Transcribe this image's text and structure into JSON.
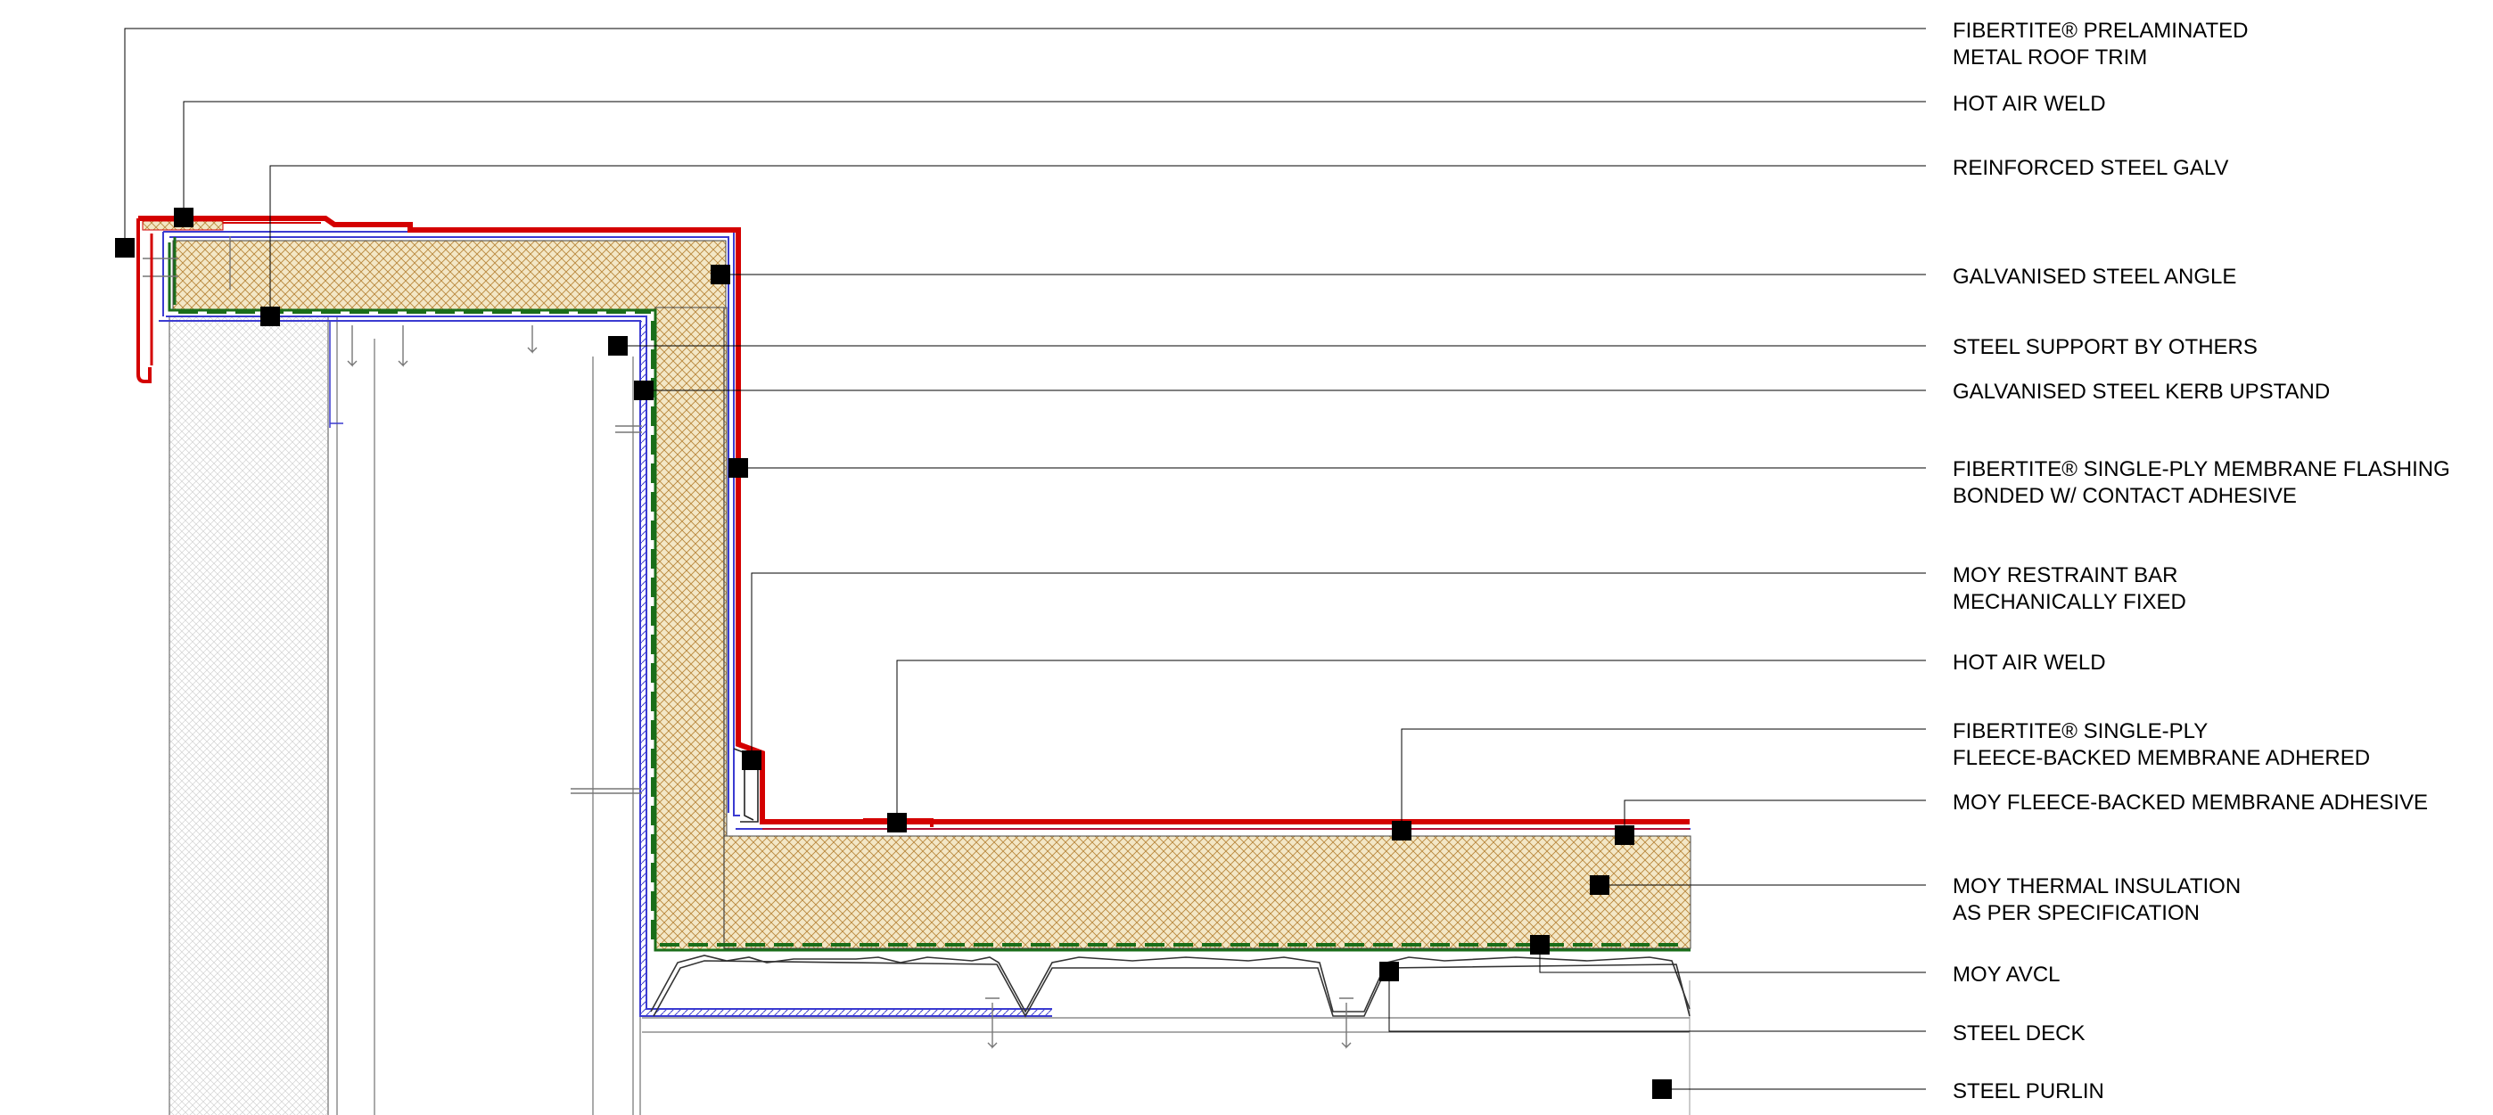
{
  "colors": {
    "membrane": "#d40000",
    "avcl": "#1a6e1a",
    "steel": "#3b3bd1",
    "insulation_fill": "#f3e7c6",
    "insulation_hatch": "#b8863b",
    "wall_hatch": "#c8c8c8",
    "line": "#000000"
  },
  "callouts": [
    {
      "id": "prelaminated-metal-trim",
      "lines": [
        "FIBERTITE® PRELAMINATED",
        "METAL ROOF TRIM"
      ]
    },
    {
      "id": "hot-air-weld-top",
      "lines": [
        "HOT AIR WELD"
      ]
    },
    {
      "id": "reinforced-steel-galv",
      "lines": [
        "REINFORCED STEEL GALV"
      ]
    },
    {
      "id": "galvanised-steel-angle",
      "lines": [
        "GALVANISED STEEL ANGLE"
      ]
    },
    {
      "id": "steel-support",
      "lines": [
        "STEEL SUPPORT BY OTHERS"
      ]
    },
    {
      "id": "kerb-upstand",
      "lines": [
        "GALVANISED STEEL KERB UPSTAND"
      ]
    },
    {
      "id": "membrane-flashing",
      "lines": [
        "FIBERTITE® SINGLE-PLY MEMBRANE FLASHING",
        "BONDED W/ CONTACT ADHESIVE"
      ]
    },
    {
      "id": "restraint-bar",
      "lines": [
        "MOY RESTRAINT BAR",
        "MECHANICALLY FIXED"
      ]
    },
    {
      "id": "hot-air-weld-bottom",
      "lines": [
        "HOT AIR WELD"
      ]
    },
    {
      "id": "fleece-backed-membrane",
      "lines": [
        "FIBERTITE® SINGLE-PLY",
        "FLEECE-BACKED MEMBRANE ADHERED"
      ]
    },
    {
      "id": "membrane-adhesive",
      "lines": [
        "MOY FLEECE-BACKED MEMBRANE ADHESIVE"
      ]
    },
    {
      "id": "thermal-insulation",
      "lines": [
        "MOY THERMAL INSULATION",
        "AS PER SPECIFICATION"
      ]
    },
    {
      "id": "avcl",
      "lines": [
        "MOY AVCL"
      ]
    },
    {
      "id": "steel-deck",
      "lines": [
        "STEEL DECK"
      ]
    },
    {
      "id": "steel-purlin",
      "lines": [
        "STEEL PURLIN"
      ]
    }
  ]
}
